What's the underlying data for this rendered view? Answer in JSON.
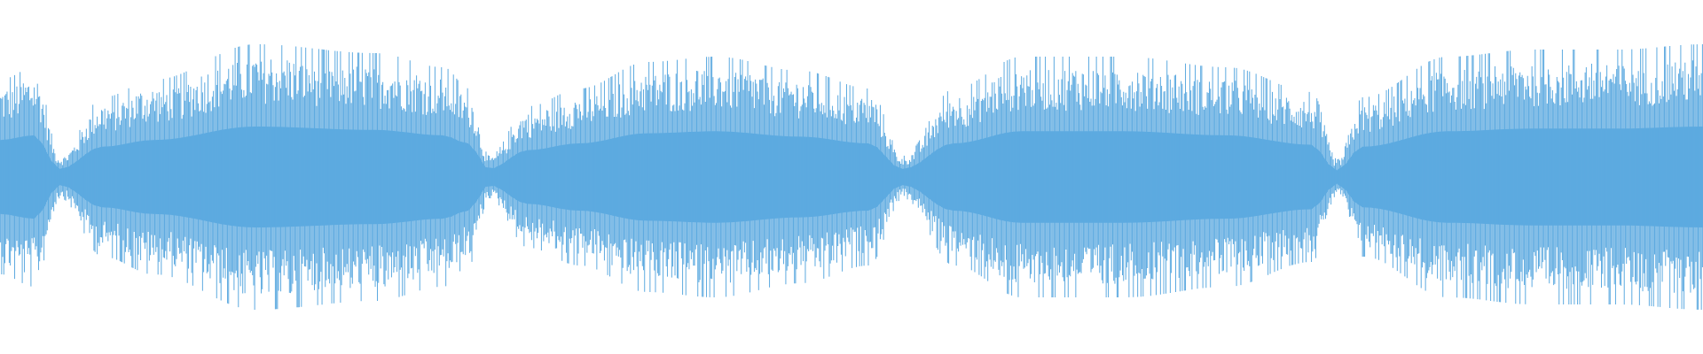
{
  "chart_data": {
    "type": "waveform",
    "color": "#5DAAE0",
    "background": "#FFFFFF",
    "sample_lines": 1568,
    "amplitude_range": [
      -1,
      1
    ],
    "envelope": [
      [
        0.0,
        0.55
      ],
      [
        0.02,
        0.62
      ],
      [
        0.035,
        0.12
      ],
      [
        0.06,
        0.45
      ],
      [
        0.09,
        0.55
      ],
      [
        0.15,
        0.75
      ],
      [
        0.22,
        0.7
      ],
      [
        0.26,
        0.62
      ],
      [
        0.275,
        0.5
      ],
      [
        0.287,
        0.12
      ],
      [
        0.31,
        0.4
      ],
      [
        0.34,
        0.5
      ],
      [
        0.38,
        0.65
      ],
      [
        0.42,
        0.68
      ],
      [
        0.47,
        0.6
      ],
      [
        0.51,
        0.5
      ],
      [
        0.53,
        0.12
      ],
      [
        0.56,
        0.5
      ],
      [
        0.6,
        0.68
      ],
      [
        0.66,
        0.68
      ],
      [
        0.72,
        0.62
      ],
      [
        0.77,
        0.48
      ],
      [
        0.785,
        0.1
      ],
      [
        0.8,
        0.45
      ],
      [
        0.85,
        0.68
      ],
      [
        0.9,
        0.72
      ],
      [
        0.95,
        0.72
      ],
      [
        1.0,
        0.75
      ]
    ]
  }
}
